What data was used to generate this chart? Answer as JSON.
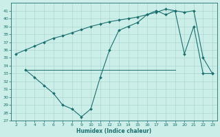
{
  "xlabel": "Humidex (Indice chaleur)",
  "background_color": "#cceee8",
  "grid_color": "#aad8d0",
  "line_color": "#1a6e6e",
  "s1_x": [
    2,
    3,
    4,
    5,
    6,
    7,
    8,
    9,
    10,
    11,
    12,
    13,
    14,
    15,
    16,
    17,
    18,
    19,
    20,
    21,
    22,
    23
  ],
  "s1_y": [
    35.5,
    36.0,
    36.5,
    37.0,
    37.5,
    37.8,
    38.2,
    38.6,
    39.0,
    39.3,
    39.6,
    39.8,
    40.0,
    40.2,
    40.5,
    40.8,
    41.2,
    41.0,
    40.8,
    41.0,
    35.0,
    33.0
  ],
  "s2_x": [
    3,
    4,
    5,
    6,
    7,
    8,
    9,
    10,
    11,
    12,
    13,
    14,
    15,
    16,
    17,
    18,
    19,
    20,
    21,
    22,
    23
  ],
  "s2_y": [
    33.5,
    32.5,
    31.5,
    30.5,
    29.0,
    28.5,
    27.5,
    28.5,
    32.5,
    36.0,
    38.5,
    39.0,
    39.5,
    40.5,
    41.0,
    40.5,
    41.0,
    35.5,
    39.0,
    33.0,
    33.0
  ],
  "ylim": [
    27,
    42
  ],
  "xlim": [
    1.5,
    23.5
  ],
  "yticks": [
    27,
    28,
    29,
    30,
    31,
    32,
    33,
    34,
    35,
    36,
    37,
    38,
    39,
    40,
    41
  ],
  "xticks": [
    2,
    3,
    4,
    5,
    6,
    7,
    8,
    9,
    10,
    11,
    12,
    13,
    14,
    15,
    16,
    17,
    18,
    19,
    20,
    21,
    22,
    23
  ],
  "hline_y": 33.5,
  "hline_x_start": 3,
  "hline_x_end": 19
}
